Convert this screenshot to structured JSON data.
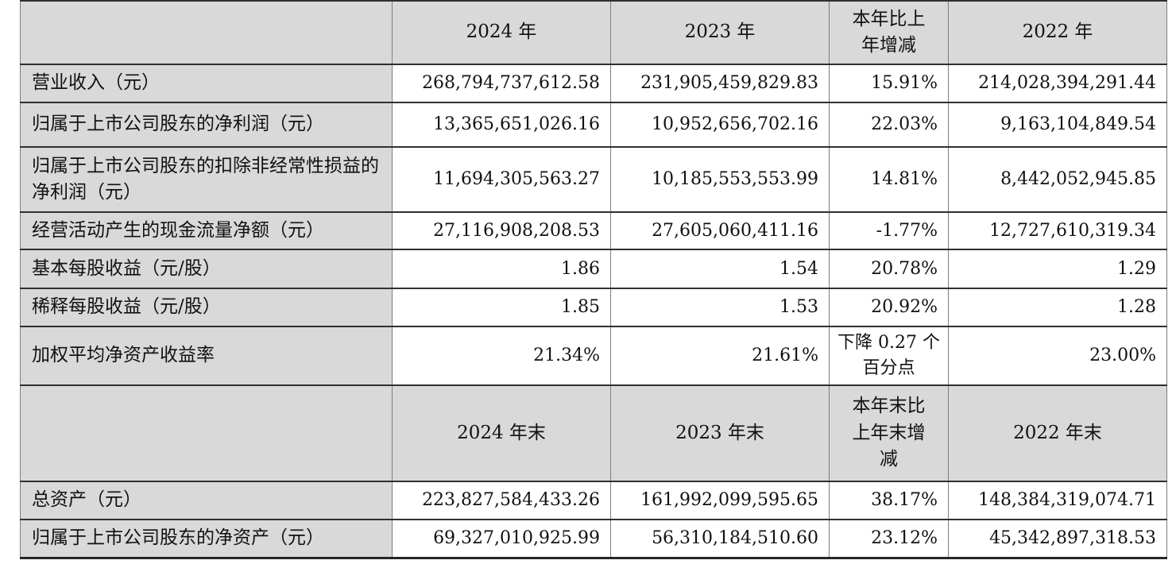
{
  "colors": {
    "header_bg": "#d9d9d9",
    "label_bg": "#d9d9d9",
    "cell_bg": "#ffffff",
    "rule_horizontal": "#2f2f2f",
    "rule_vertical": "#7d7d7d"
  },
  "table": {
    "sections": [
      {
        "headers": [
          "",
          "2024 年",
          "2023 年",
          "本年比上年增减",
          "2022 年"
        ],
        "rows": [
          {
            "label": "营业收入（元）",
            "values": [
              "268,794,737,612.58",
              "231,905,459,829.83",
              "15.91%",
              "214,028,394,291.44"
            ]
          },
          {
            "label": "归属于上市公司股东的净利润（元）",
            "values": [
              "13,365,651,026.16",
              "10,952,656,702.16",
              "22.03%",
              "9,163,104,849.54"
            ]
          },
          {
            "label": "归属于上市公司股东的扣除非经常性损益的净利润（元）",
            "values": [
              "11,694,305,563.27",
              "10,185,553,553.99",
              "14.81%",
              "8,442,052,945.85"
            ]
          },
          {
            "label": "经营活动产生的现金流量净额（元）",
            "values": [
              "27,116,908,208.53",
              "27,605,060,411.16",
              "-1.77%",
              "12,727,610,319.34"
            ]
          },
          {
            "label": "基本每股收益（元/股）",
            "values": [
              "1.86",
              "1.54",
              "20.78%",
              "1.29"
            ]
          },
          {
            "label": "稀释每股收益（元/股）",
            "values": [
              "1.85",
              "1.53",
              "20.92%",
              "1.28"
            ]
          },
          {
            "label": "加权平均净资产收益率",
            "values": [
              "21.34%",
              "21.61%",
              "下降 0.27 个百分点",
              "23.00%"
            ]
          }
        ]
      },
      {
        "headers": [
          "",
          "2024 年末",
          "2023 年末",
          "本年末比上年末增减",
          "2022 年末"
        ],
        "rows": [
          {
            "label": "总资产（元）",
            "values": [
              "223,827,584,433.26",
              "161,992,099,595.65",
              "38.17%",
              "148,384,319,074.71"
            ]
          },
          {
            "label": "归属于上市公司股东的净资产（元）",
            "values": [
              "69,327,010,925.99",
              "56,310,184,510.60",
              "23.12%",
              "45,342,897,318.53"
            ]
          }
        ]
      }
    ]
  }
}
